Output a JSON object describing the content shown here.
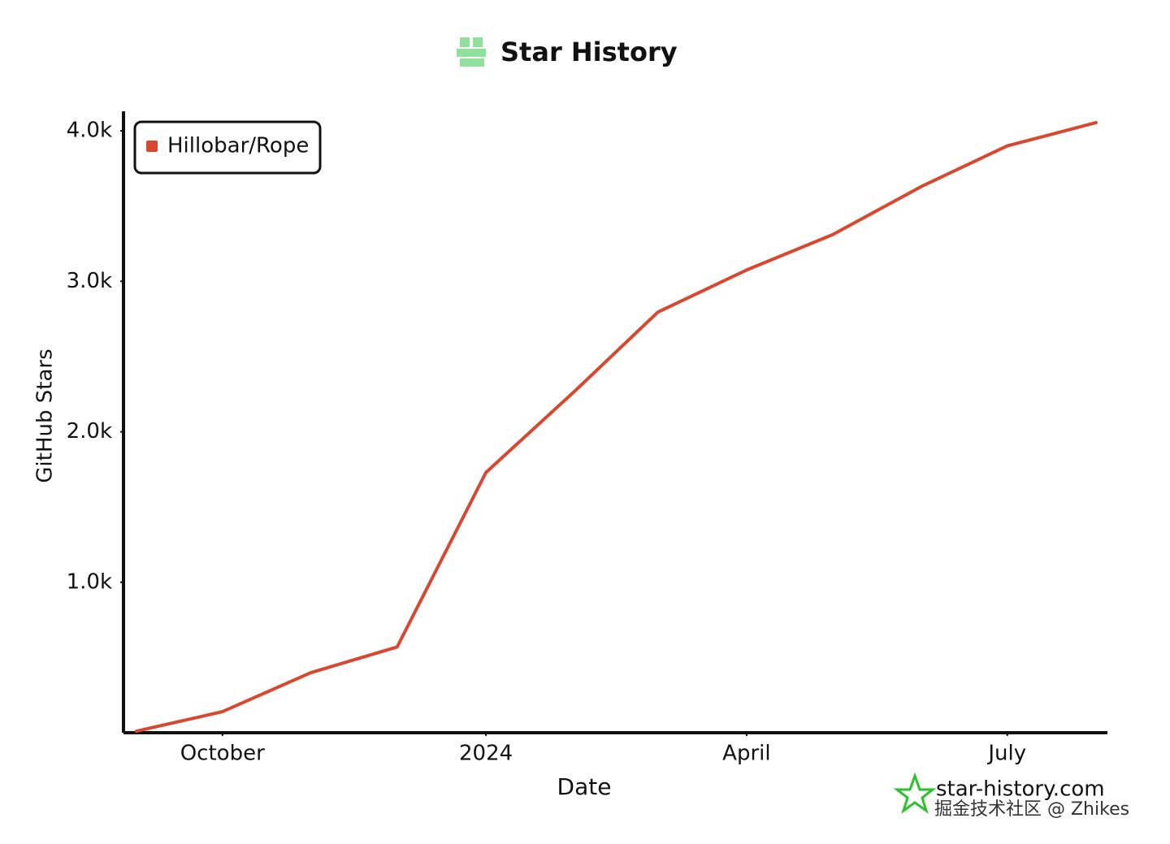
{
  "chart_data": {
    "type": "line",
    "title": "Star History",
    "x_label": "Date",
    "y_label": "GitHub Stars",
    "x": [
      "2023-09",
      "2023-10",
      "2023-11",
      "2023-12",
      "2024-01",
      "2024-02",
      "2024-03",
      "2024-04",
      "2024-05",
      "2024-06",
      "2024-07",
      "2024-08"
    ],
    "series": [
      {
        "name": "Hillobar/Rope",
        "color": "#d9472f",
        "values": [
          10,
          140,
          400,
          570,
          1730,
          2270,
          2795,
          3075,
          3310,
          3630,
          3900,
          4055
        ]
      }
    ],
    "xlim": [
      "2023-09",
      "2024-08"
    ],
    "xticks": [
      {
        "value": "2023-10",
        "label": "October"
      },
      {
        "value": "2024-01",
        "label": "2024"
      },
      {
        "value": "2024-04",
        "label": "April"
      },
      {
        "value": "2024-07",
        "label": "July"
      }
    ],
    "ylim": [
      0,
      4130
    ],
    "yticks": [
      {
        "value": 1000,
        "label": "1.0k"
      },
      {
        "value": 2000,
        "label": "2.0k"
      },
      {
        "value": 3000,
        "label": "3.0k"
      },
      {
        "value": 4000,
        "label": "4.0k"
      }
    ],
    "legend_position": "upper-left",
    "watermarks": [
      "star-history.com",
      "掘金技术社区 @ Zhikes"
    ]
  }
}
